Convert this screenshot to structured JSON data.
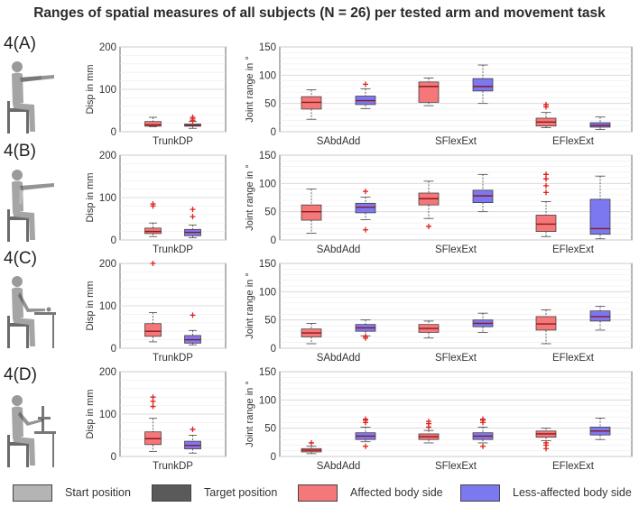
{
  "title": "Ranges of spatial measures of all subjects (N = 26) per tested arm and movement task",
  "colors": {
    "affected": "#f4777a",
    "less_affected": "#7c78f0",
    "start": "#b4b4b4",
    "target": "#5a5a5a",
    "outlier": "#e0201b",
    "median": "#8a1a1a"
  },
  "legend": {
    "start": "Start position",
    "target": "Target position",
    "affected": "Affected body side",
    "less_affected": "Less-affected body side"
  },
  "chart_data": [
    {
      "type": "boxplot",
      "panel": "4(A)",
      "label": "4(A)",
      "side": "displacement",
      "ylabel": "Disp in mm",
      "ylim": [
        0,
        200
      ],
      "yticks": [
        0,
        100,
        200
      ],
      "categories": [
        "TrunkDP"
      ],
      "series": [
        {
          "name": "Affected body side",
          "boxes": [
            {
              "min": 12,
              "q1": 13,
              "median": 16,
              "q3": 24,
              "max": 34,
              "outliers": []
            }
          ]
        },
        {
          "name": "Less-affected body side",
          "boxes": [
            {
              "min": 8,
              "q1": 13,
              "median": 15,
              "q3": 18,
              "max": 24,
              "outliers": [
                26,
                30,
                34
              ]
            }
          ]
        }
      ]
    },
    {
      "type": "boxplot",
      "panel": "4(A)",
      "side": "joint",
      "ylabel": "Joint range in °",
      "ylim": [
        0,
        150
      ],
      "yticks": [
        0,
        50,
        100,
        150
      ],
      "categories": [
        "SAbdAdd",
        "SFlexExt",
        "EFlexExt"
      ],
      "series": [
        {
          "name": "Affected body side",
          "boxes": [
            {
              "min": 22,
              "q1": 40,
              "median": 52,
              "q3": 62,
              "max": 74,
              "outliers": []
            },
            {
              "min": 46,
              "q1": 52,
              "median": 80,
              "q3": 88,
              "max": 95,
              "outliers": []
            },
            {
              "min": 7,
              "q1": 10,
              "median": 17,
              "q3": 24,
              "max": 34,
              "outliers": [
                44,
                48
              ]
            }
          ]
        },
        {
          "name": "Less-affected body side",
          "boxes": [
            {
              "min": 41,
              "q1": 48,
              "median": 55,
              "q3": 63,
              "max": 76,
              "outliers": [
                84
              ]
            },
            {
              "min": 50,
              "q1": 72,
              "median": 80,
              "q3": 94,
              "max": 118,
              "outliers": []
            },
            {
              "min": 4,
              "q1": 8,
              "median": 11,
              "q3": 16,
              "max": 26,
              "outliers": []
            }
          ]
        }
      ]
    },
    {
      "type": "boxplot",
      "panel": "4(B)",
      "label": "4(B)",
      "side": "displacement",
      "ylabel": "Disp in mm",
      "ylim": [
        0,
        200
      ],
      "yticks": [
        0,
        100,
        200
      ],
      "categories": [
        "TrunkDP"
      ],
      "series": [
        {
          "name": "Affected body side",
          "boxes": [
            {
              "min": 8,
              "q1": 15,
              "median": 20,
              "q3": 28,
              "max": 40,
              "outliers": [
                80,
                85
              ]
            }
          ]
        },
        {
          "name": "Less-affected body side",
          "boxes": [
            {
              "min": 5,
              "q1": 10,
              "median": 18,
              "q3": 25,
              "max": 35,
              "outliers": [
                55,
                72
              ]
            }
          ]
        }
      ]
    },
    {
      "type": "boxplot",
      "panel": "4(B)",
      "side": "joint",
      "ylabel": "Joint range in °",
      "ylim": [
        0,
        150
      ],
      "yticks": [
        0,
        50,
        100,
        150
      ],
      "categories": [
        "SAbdAdd",
        "SFlexExt",
        "EFlexExt"
      ],
      "series": [
        {
          "name": "Affected body side",
          "boxes": [
            {
              "min": 12,
              "q1": 35,
              "median": 50,
              "q3": 62,
              "max": 90,
              "outliers": []
            },
            {
              "min": 38,
              "q1": 62,
              "median": 73,
              "q3": 83,
              "max": 104,
              "outliers": [
                24
              ]
            },
            {
              "min": 6,
              "q1": 15,
              "median": 28,
              "q3": 44,
              "max": 68,
              "outliers": [
                84,
                96,
                108,
                116
              ]
            }
          ]
        },
        {
          "name": "Less-affected body side",
          "boxes": [
            {
              "min": 36,
              "q1": 48,
              "median": 58,
              "q3": 65,
              "max": 76,
              "outliers": [
                18,
                86
              ]
            },
            {
              "min": 50,
              "q1": 66,
              "median": 78,
              "q3": 88,
              "max": 116,
              "outliers": []
            },
            {
              "min": 2,
              "q1": 10,
              "median": 20,
              "q3": 72,
              "max": 113,
              "outliers": []
            }
          ]
        }
      ]
    },
    {
      "type": "boxplot",
      "panel": "4(C)",
      "label": "4(C)",
      "side": "displacement",
      "ylabel": "Disp in mm",
      "ylim": [
        0,
        200
      ],
      "yticks": [
        0,
        100,
        200
      ],
      "categories": [
        "TrunkDP"
      ],
      "series": [
        {
          "name": "Affected body side",
          "boxes": [
            {
              "min": 15,
              "q1": 28,
              "median": 40,
              "q3": 58,
              "max": 84,
              "outliers": [
                200
              ]
            }
          ]
        },
        {
          "name": "Less-affected body side",
          "boxes": [
            {
              "min": 8,
              "q1": 12,
              "median": 20,
              "q3": 30,
              "max": 42,
              "outliers": [
                78
              ]
            }
          ]
        }
      ]
    },
    {
      "type": "boxplot",
      "panel": "4(C)",
      "side": "joint",
      "ylabel": "Joint range in °",
      "ylim": [
        0,
        150
      ],
      "yticks": [
        0,
        50,
        100,
        150
      ],
      "categories": [
        "SAbdAdd",
        "SFlexExt",
        "EFlexExt"
      ],
      "series": [
        {
          "name": "Affected body side",
          "boxes": [
            {
              "min": 8,
              "q1": 20,
              "median": 27,
              "q3": 34,
              "max": 44,
              "outliers": []
            },
            {
              "min": 18,
              "q1": 28,
              "median": 35,
              "q3": 42,
              "max": 48,
              "outliers": []
            },
            {
              "min": 8,
              "q1": 32,
              "median": 43,
              "q3": 56,
              "max": 68,
              "outliers": []
            }
          ]
        },
        {
          "name": "Less-affected body side",
          "boxes": [
            {
              "min": 22,
              "q1": 30,
              "median": 36,
              "q3": 42,
              "max": 50,
              "outliers": [
                18,
                21
              ]
            },
            {
              "min": 28,
              "q1": 38,
              "median": 44,
              "q3": 50,
              "max": 62,
              "outliers": []
            },
            {
              "min": 32,
              "q1": 48,
              "median": 56,
              "q3": 66,
              "max": 74,
              "outliers": []
            }
          ]
        }
      ]
    },
    {
      "type": "boxplot",
      "panel": "4(D)",
      "label": "4(D)",
      "side": "displacement",
      "ylabel": "Disp in mm",
      "ylim": [
        0,
        200
      ],
      "yticks": [
        0,
        100,
        200
      ],
      "categories": [
        "TrunkDP"
      ],
      "series": [
        {
          "name": "Affected body side",
          "boxes": [
            {
              "min": 12,
              "q1": 28,
              "median": 42,
              "q3": 58,
              "max": 90,
              "outliers": [
                118,
                130,
                140
              ]
            }
          ]
        },
        {
          "name": "Less-affected body side",
          "boxes": [
            {
              "min": 8,
              "q1": 18,
              "median": 26,
              "q3": 36,
              "max": 50,
              "outliers": [
                64
              ]
            }
          ]
        }
      ]
    },
    {
      "type": "boxplot",
      "panel": "4(D)",
      "side": "joint",
      "ylabel": "Joint range in °",
      "ylim": [
        0,
        150
      ],
      "yticks": [
        0,
        50,
        100,
        150
      ],
      "categories": [
        "SAbdAdd",
        "SFlexExt",
        "EFlexExt"
      ],
      "series": [
        {
          "name": "Affected body side",
          "boxes": [
            {
              "min": 5,
              "q1": 8,
              "median": 11,
              "q3": 14,
              "max": 18,
              "outliers": [
                24
              ]
            },
            {
              "min": 24,
              "q1": 30,
              "median": 35,
              "q3": 40,
              "max": 46,
              "outliers": [
                52,
                58,
                62
              ]
            },
            {
              "min": 28,
              "q1": 34,
              "median": 40,
              "q3": 45,
              "max": 50,
              "outliers": [
                14,
                20,
                24
              ]
            }
          ]
        },
        {
          "name": "Less-affected body side",
          "boxes": [
            {
              "min": 26,
              "q1": 30,
              "median": 36,
              "q3": 42,
              "max": 52,
              "outliers": [
                18,
                60,
                64,
                66
              ]
            },
            {
              "min": 24,
              "q1": 30,
              "median": 36,
              "q3": 42,
              "max": 52,
              "outliers": [
                18,
                60,
                64,
                66
              ]
            },
            {
              "min": 30,
              "q1": 38,
              "median": 45,
              "q3": 52,
              "max": 68,
              "outliers": []
            }
          ]
        }
      ]
    }
  ]
}
